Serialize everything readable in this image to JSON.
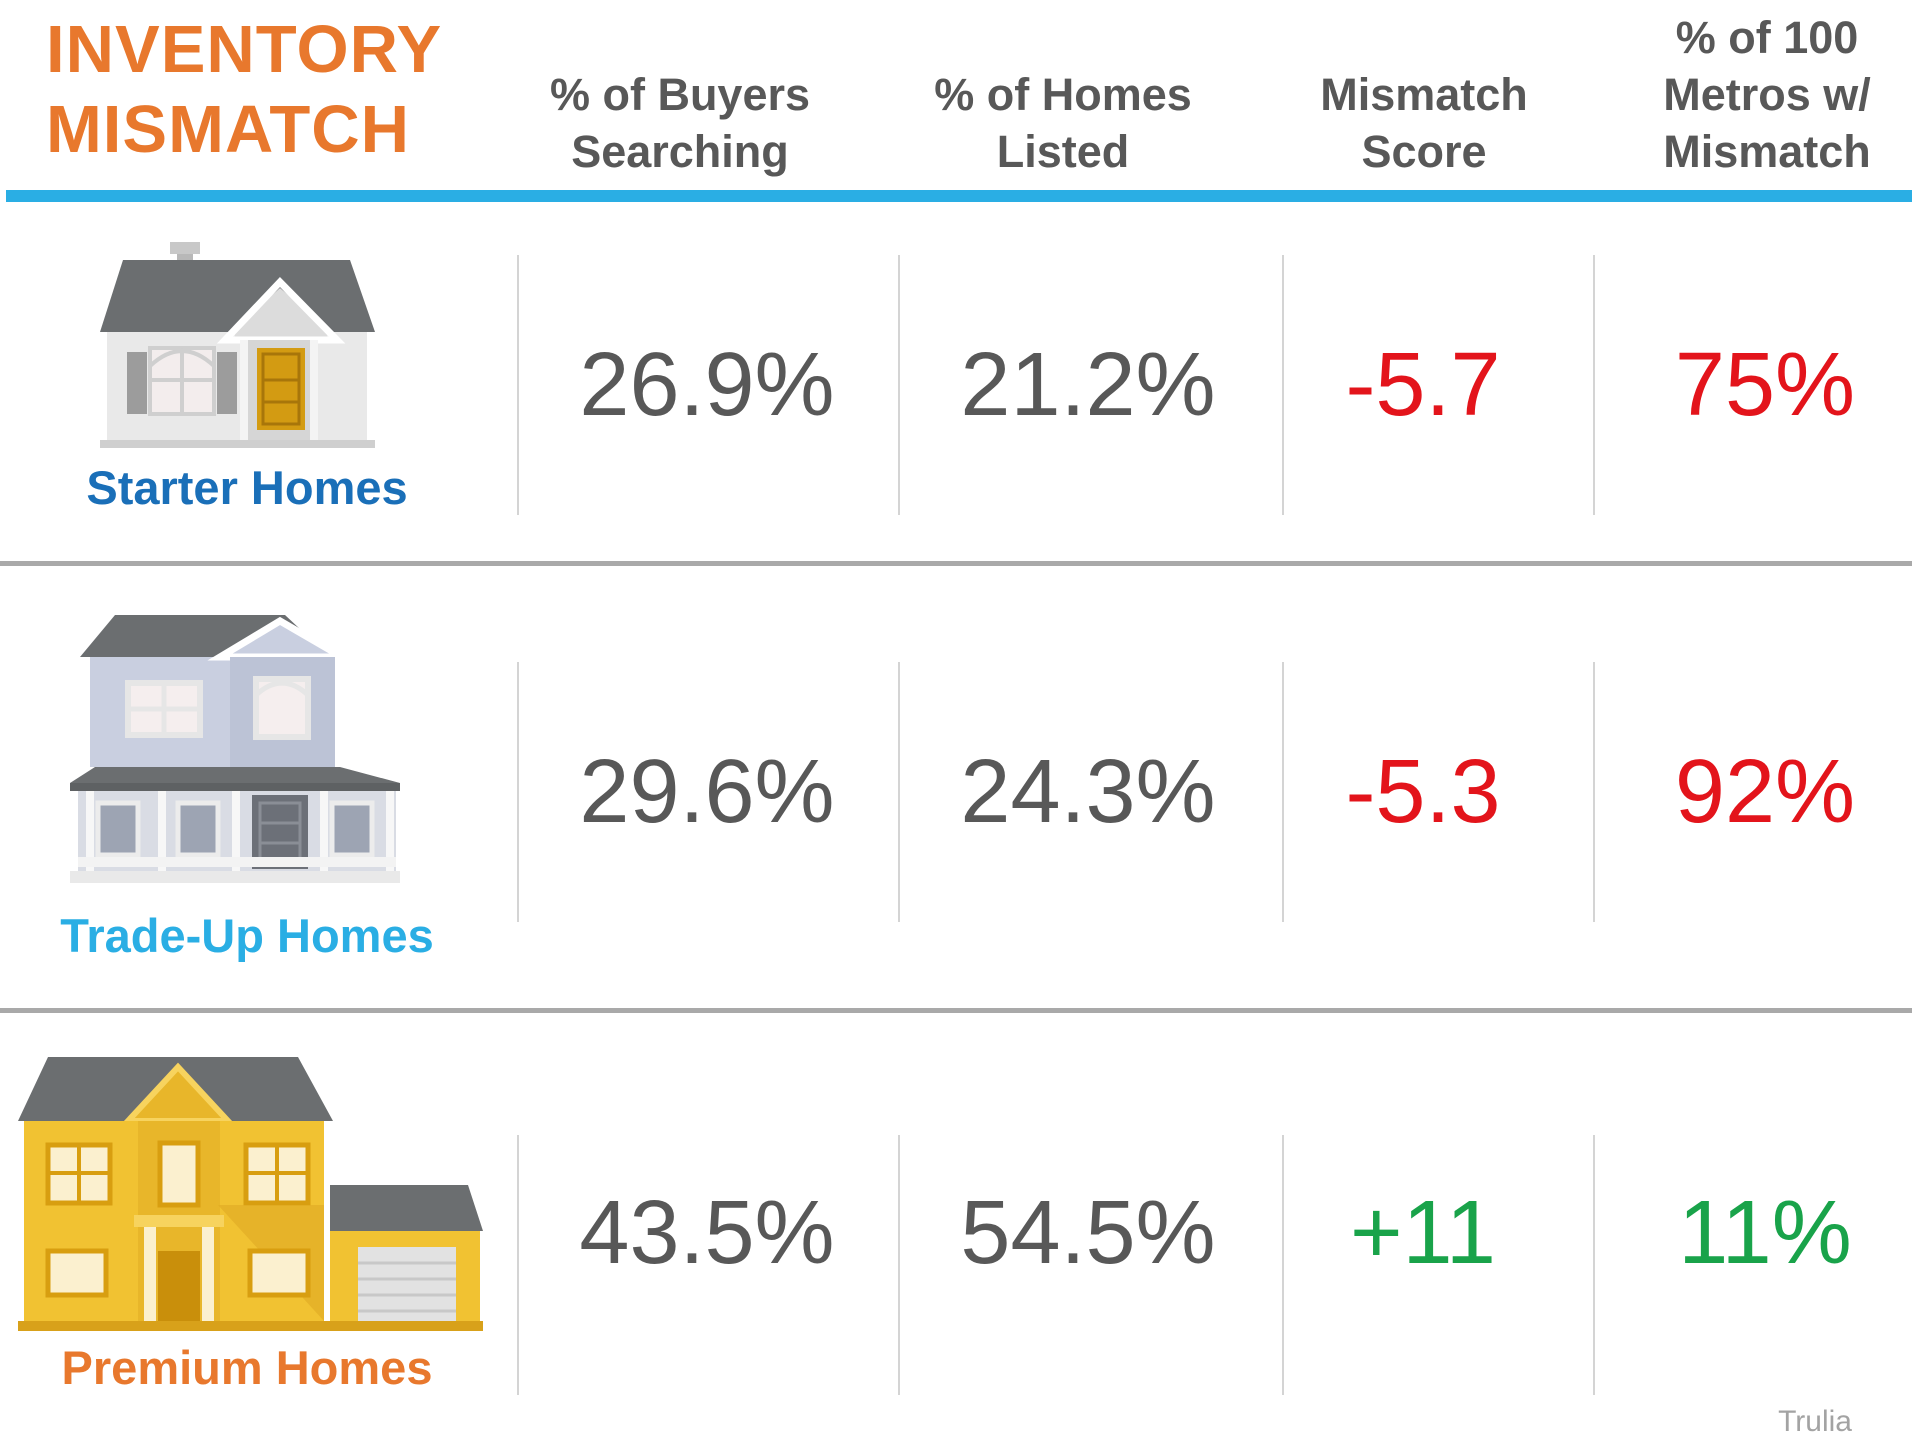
{
  "title": {
    "line1": "INVENTORY",
    "line2": "MISMATCH"
  },
  "columns": [
    {
      "lines": [
        "% of Buyers",
        "Searching"
      ]
    },
    {
      "lines": [
        "% of Homes",
        "Listed"
      ]
    },
    {
      "lines": [
        "Mismatch",
        "Score"
      ]
    },
    {
      "lines": [
        "% of 100",
        "Metros w/",
        "Mismatch"
      ]
    }
  ],
  "colors": {
    "title": "#e8782d",
    "header_rule": "#2aaee4",
    "neutral_value": "#585858",
    "negative": "#e3141b",
    "positive": "#19a34a",
    "starter_label": "#1a6fb8",
    "tradeup_label": "#2aaee4",
    "premium_label": "#e8782d"
  },
  "chart_data": {
    "type": "table",
    "columns": [
      "% of Buyers Searching",
      "% of Homes Listed",
      "Mismatch Score",
      "% of 100 Metros w/ Mismatch"
    ],
    "rows": [
      {
        "category": "Starter Homes",
        "cells": [
          "26.9%",
          "21.2%",
          "-5.7",
          "75%"
        ],
        "values": [
          26.9,
          21.2,
          -5.7,
          75
        ],
        "tone": "negative",
        "icon": "starter-house-icon"
      },
      {
        "category": "Trade-Up Homes",
        "cells": [
          "29.6%",
          "24.3%",
          "-5.3",
          "92%"
        ],
        "values": [
          29.6,
          24.3,
          -5.3,
          92
        ],
        "tone": "negative",
        "icon": "tradeup-house-icon"
      },
      {
        "category": "Premium Homes",
        "cells": [
          "43.5%",
          "54.5%",
          "+11",
          "11%"
        ],
        "values": [
          43.5,
          54.5,
          11,
          11
        ],
        "tone": "positive",
        "icon": "premium-house-icon"
      }
    ]
  },
  "source": "Trulia"
}
